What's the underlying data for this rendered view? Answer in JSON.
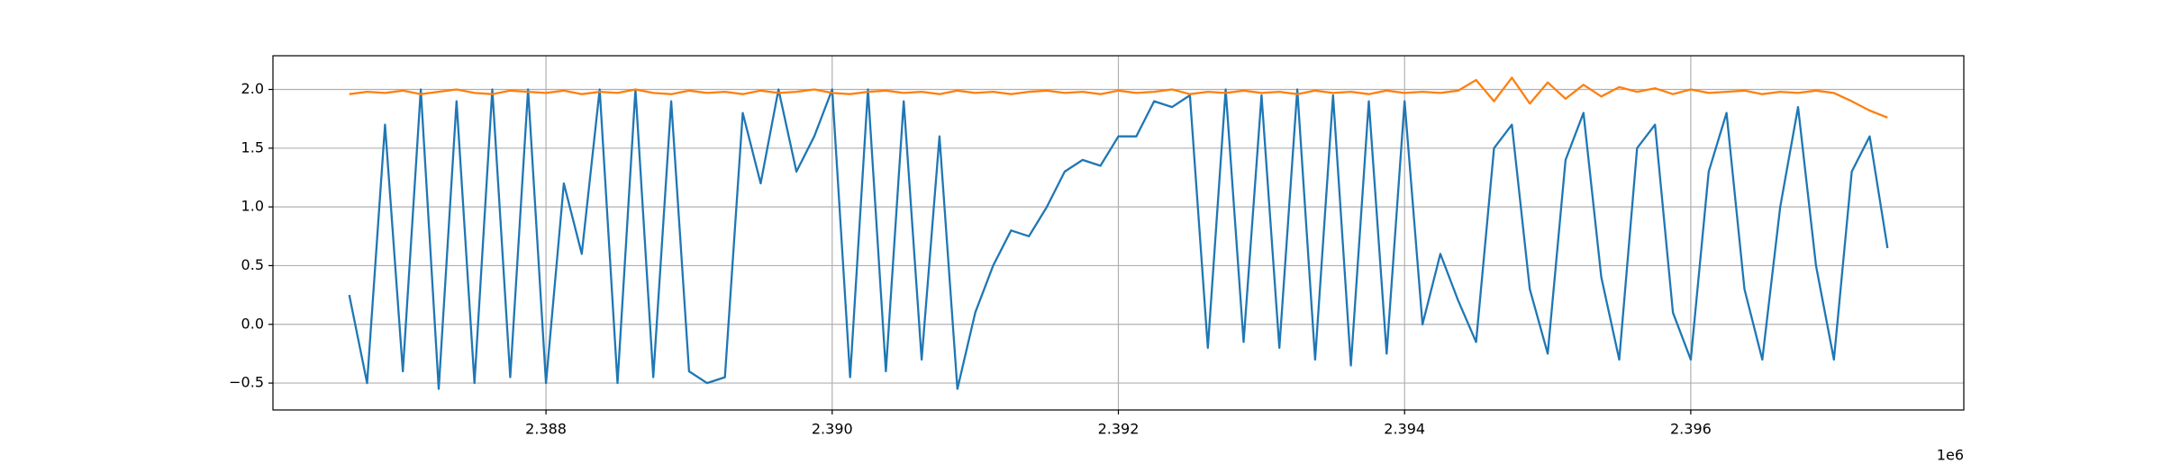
{
  "chart_data": {
    "type": "line",
    "x": [
      2386625,
      2386750,
      2386875,
      2387000,
      2387125,
      2387250,
      2387375,
      2387500,
      2387625,
      2387750,
      2387875,
      2388000,
      2388125,
      2388250,
      2388375,
      2388500,
      2388625,
      2388750,
      2388875,
      2389000,
      2389125,
      2389250,
      2389375,
      2389500,
      2389625,
      2389750,
      2389875,
      2390000,
      2390125,
      2390250,
      2390375,
      2390500,
      2390625,
      2390750,
      2390875,
      2391000,
      2391125,
      2391250,
      2391375,
      2391500,
      2391625,
      2391750,
      2391875,
      2392000,
      2392125,
      2392250,
      2392375,
      2392500,
      2392625,
      2392750,
      2392875,
      2393000,
      2393125,
      2393250,
      2393375,
      2393500,
      2393625,
      2393750,
      2393875,
      2394000,
      2394125,
      2394250,
      2394375,
      2394500,
      2394625,
      2394750,
      2394875,
      2395000,
      2395125,
      2395250,
      2395375,
      2395500,
      2395625,
      2395750,
      2395875,
      2396000,
      2396125,
      2396250,
      2396375,
      2396500,
      2396625,
      2396750,
      2396875,
      2397000,
      2397125,
      2397250,
      2397375
    ],
    "series": [
      {
        "color": "#1f77b4",
        "values": [
          0.25,
          -0.5,
          1.7,
          -0.4,
          2.0,
          -0.55,
          1.9,
          -0.5,
          2.0,
          -0.45,
          2.0,
          -0.5,
          1.2,
          0.6,
          2.0,
          -0.5,
          2.0,
          -0.45,
          1.9,
          -0.4,
          -0.5,
          -0.45,
          1.8,
          1.2,
          2.0,
          1.3,
          1.6,
          2.0,
          -0.45,
          2.0,
          -0.4,
          1.9,
          -0.3,
          1.6,
          -0.55,
          0.1,
          0.5,
          0.8,
          0.75,
          1.0,
          1.3,
          1.4,
          1.35,
          1.6,
          1.6,
          1.9,
          1.85,
          1.95,
          -0.2,
          2.0,
          -0.15,
          1.95,
          -0.2,
          2.0,
          -0.3,
          1.95,
          -0.35,
          1.9,
          -0.25,
          1.9,
          0.0,
          0.6,
          0.2,
          -0.15,
          1.5,
          1.7,
          0.3,
          -0.25,
          1.4,
          1.8,
          0.4,
          -0.3,
          1.5,
          1.7,
          0.1,
          -0.3,
          1.3,
          1.8,
          0.3,
          -0.3,
          1.0,
          1.85,
          0.5,
          -0.3,
          1.3,
          1.6,
          0.65
        ]
      },
      {
        "color": "#ff7f0e",
        "values": [
          1.96,
          1.98,
          1.97,
          1.99,
          1.96,
          1.98,
          2.0,
          1.97,
          1.96,
          1.99,
          1.98,
          1.97,
          1.99,
          1.96,
          1.98,
          1.97,
          2.0,
          1.97,
          1.96,
          1.99,
          1.97,
          1.98,
          1.96,
          1.99,
          1.97,
          1.98,
          2.0,
          1.97,
          1.96,
          1.98,
          1.99,
          1.97,
          1.98,
          1.96,
          1.99,
          1.97,
          1.98,
          1.96,
          1.98,
          1.99,
          1.97,
          1.98,
          1.96,
          1.99,
          1.97,
          1.98,
          2.0,
          1.96,
          1.98,
          1.97,
          1.99,
          1.97,
          1.98,
          1.96,
          1.99,
          1.97,
          1.98,
          1.96,
          1.99,
          1.97,
          1.98,
          1.97,
          1.99,
          2.08,
          1.9,
          2.1,
          1.88,
          2.06,
          1.92,
          2.04,
          1.94,
          2.02,
          1.98,
          2.01,
          1.96,
          2.0,
          1.97,
          1.98,
          1.99,
          1.96,
          1.98,
          1.97,
          1.99,
          1.97,
          1.9,
          1.82,
          1.76
        ]
      }
    ],
    "xlim": [
      2386092,
      2397908
    ],
    "xticks": [
      {
        "value": 2388000,
        "label": "2.388"
      },
      {
        "value": 2390000,
        "label": "2.390"
      },
      {
        "value": 2392000,
        "label": "2.392"
      },
      {
        "value": 2394000,
        "label": "2.394"
      },
      {
        "value": 2396000,
        "label": "2.396"
      }
    ],
    "x_offset_label": "1e6",
    "ylim": [
      -0.729,
      2.287
    ],
    "yticks": [
      {
        "value": -0.5,
        "label": "−0.5"
      },
      {
        "value": 0,
        "label": "0.0"
      },
      {
        "value": 0.5,
        "label": "0.5"
      },
      {
        "value": 1,
        "label": "1.0"
      },
      {
        "value": 1.5,
        "label": "1.5"
      },
      {
        "value": 2,
        "label": "2.0"
      }
    ],
    "grid": true
  }
}
